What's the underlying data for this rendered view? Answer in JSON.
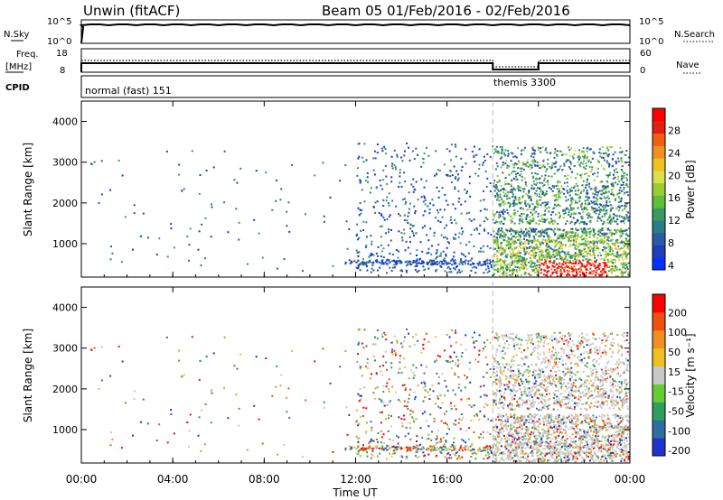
{
  "header": {
    "station": "Unwin (fitACF)",
    "beam_and_date": "Beam 05  01/Feb/2016 - 02/Feb/2016"
  },
  "strips": {
    "nsky_label": "N.Sky",
    "nsky_ticks": [
      "10^5",
      "10^0"
    ],
    "nsearch_label": "N.Search",
    "nsearch_ticks": [
      "10^5",
      "10^0"
    ],
    "freq_label_1": "Freq.",
    "freq_label_2": "[MHz]",
    "freq_ticks": [
      "18",
      "8"
    ],
    "nave_label": "Nave",
    "nave_ticks": [
      "60",
      "0"
    ],
    "cpid_label": "CPID",
    "cpid_segments": [
      "normal (fast) 151",
      "themis 3300"
    ]
  },
  "chart_data": [
    {
      "type": "heatmap",
      "name": "power",
      "ylabel": "Slant Range [km]",
      "yticks": [
        "4000",
        "3000",
        "2000",
        "1000"
      ],
      "ylim": [
        180,
        4500
      ],
      "xlim_hours": [
        0,
        24
      ],
      "colorbar": {
        "label": "Power [dB]",
        "ticks": [
          "28",
          "24",
          "20",
          "16",
          "12",
          "8",
          "4"
        ],
        "range": [
          0,
          30
        ],
        "colors": [
          "#0033ff",
          "#1f3fb8",
          "#2c5aa8",
          "#2b7d85",
          "#3a9a62",
          "#5cbf3c",
          "#9acd32",
          "#d8e04a",
          "#f0c020",
          "#f09020",
          "#f06010",
          "#e02010",
          "#ff0000"
        ]
      }
    },
    {
      "type": "heatmap",
      "name": "velocity",
      "ylabel": "Slant Range [km]",
      "yticks": [
        "4000",
        "3000",
        "2000",
        "1000"
      ],
      "ylim": [
        180,
        4500
      ],
      "xlim_hours": [
        0,
        24
      ],
      "xlabel": "Time UT",
      "xticks": [
        "00:00",
        "04:00",
        "08:00",
        "12:00",
        "16:00",
        "20:00",
        "00:00"
      ],
      "colorbar": {
        "label": "Velocity [m s⁻¹]",
        "ticks": [
          "200",
          "100",
          "50",
          "15",
          "-15",
          "-50",
          "-100",
          "-200"
        ],
        "colors": [
          "#2233cc",
          "#2f6fa0",
          "#2e9e60",
          "#66cc33",
          "#c8c8c8",
          "#f0c020",
          "#f09020",
          "#f05010",
          "#ff0000"
        ]
      }
    }
  ],
  "mode_change_hour": 18
}
